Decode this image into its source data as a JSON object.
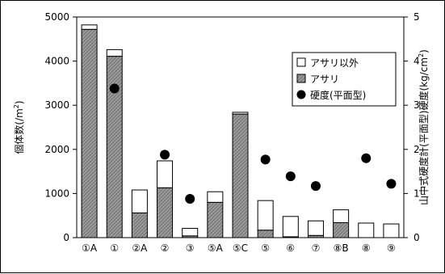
{
  "chart_data": {
    "type": "bar",
    "stacked": true,
    "categories": [
      "①A",
      "①",
      "②A",
      "②",
      "③",
      "⑤A",
      "⑤C",
      "⑤",
      "⑥",
      "⑦",
      "⑧B",
      "⑧",
      "⑨"
    ],
    "series": [
      {
        "name": "アサリ",
        "axis": "left",
        "color": "#7a7a7a",
        "pattern": "hatched",
        "values": [
          4720,
          4110,
          560,
          1130,
          40,
          800,
          2800,
          170,
          20,
          50,
          340,
          0,
          0
        ]
      },
      {
        "name": "アサリ以外",
        "axis": "left",
        "color": "#ffffff",
        "values": [
          100,
          150,
          520,
          610,
          170,
          240,
          40,
          670,
          460,
          330,
          290,
          330,
          310
        ]
      },
      {
        "name": "硬度(平面型)",
        "axis": "right",
        "type": "scatter",
        "color": "#000000",
        "values": [
          null,
          3.38,
          null,
          1.88,
          0.88,
          null,
          null,
          1.77,
          1.39,
          1.17,
          null,
          1.8,
          1.22
        ]
      }
    ],
    "ylabel": "個体数(/m²)",
    "ylabel_parts": {
      "main": "個体数(/m",
      "sup": "2",
      "close": ")"
    },
    "ylim": [
      0,
      5000
    ],
    "yticks": [
      "0",
      "1000",
      "2000",
      "3000",
      "4000",
      "5000"
    ],
    "y2label": "山中式硬度計(平面型)硬度(kg/cm²)",
    "y2label_parts": {
      "main": "山中式硬度計(平面型)硬度(kg/cm",
      "sup": "2",
      "close": ")"
    },
    "y2lim": [
      0,
      5
    ],
    "y2ticks": [
      "0",
      "1",
      "2",
      "3",
      "4",
      "5"
    ],
    "legend": {
      "placement": "top-right",
      "entries": [
        "アサリ以外",
        "アサリ",
        "硬度(平面型)"
      ]
    },
    "grid": false
  }
}
